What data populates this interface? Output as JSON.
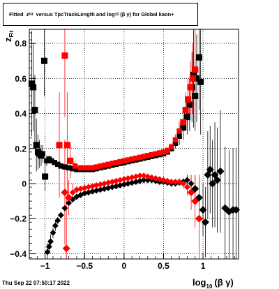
{
  "title": {
    "prefix": "Fitted",
    "var": "z",
    "var_sub": "Fit",
    "mid": "versus TpcTrackLength and log",
    "log_sub": "10",
    "suffix": "(β γ) for Global kaon+"
  },
  "timestamp": "Thu Sep 22 07:50:17 2022",
  "colors": {
    "series_a": "#000000",
    "series_b": "#ff0000",
    "grid": "#000000"
  },
  "chart_data": {
    "type": "scatter",
    "xlabel": {
      "main": "log",
      "sub": "10",
      "tail": "(β γ)"
    },
    "ylabel": {
      "main": "z",
      "sub": "Fit"
    },
    "xlim": [
      -1.2,
      1.45
    ],
    "ylim": [
      -0.43,
      0.88
    ],
    "x_ticks": [
      {
        "v": -1,
        "label": "−1"
      },
      {
        "v": -0.5,
        "label": "−0.5"
      },
      {
        "v": 0,
        "label": "0"
      },
      {
        "v": 0.5,
        "label": "0.5"
      },
      {
        "v": 1,
        "label": "1"
      }
    ],
    "y_ticks": [
      {
        "v": -0.4,
        "label": "−0.4"
      },
      {
        "v": -0.2,
        "label": "−0.2"
      },
      {
        "v": 0,
        "label": "0"
      },
      {
        "v": 0.2,
        "label": "0.2"
      },
      {
        "v": 0.4,
        "label": "0.4"
      },
      {
        "v": 0.6,
        "label": "0.6"
      },
      {
        "v": 0.8,
        "label": "0.8"
      }
    ],
    "grid": true,
    "series": [
      {
        "marker": "square",
        "color": "#000000",
        "points": [
          [
            -1.17,
            0.57,
            0.3
          ],
          [
            -1.15,
            0.55,
            0.25
          ],
          [
            -1.13,
            0.42,
            0.2
          ],
          [
            -1.11,
            0.22,
            0.15
          ],
          [
            -1.09,
            0.18,
            0.1
          ],
          [
            -1.07,
            0.17,
            0.08
          ],
          [
            -1.05,
            0.16,
            0.06
          ],
          [
            -1.03,
            0.17,
            0.05
          ],
          [
            -1.01,
            0.7,
            0.2
          ],
          [
            -1.0,
            0.04,
            0.08
          ],
          [
            -0.98,
            0.13,
            0.03
          ],
          [
            -0.95,
            0.14,
            0.02
          ],
          [
            -0.92,
            0.13,
            0.015
          ],
          [
            -0.88,
            0.12,
            0.01
          ],
          [
            -0.84,
            0.11,
            0.01
          ],
          [
            -0.8,
            0.1,
            0.01
          ],
          [
            -0.75,
            0.095,
            0.01
          ],
          [
            -0.7,
            0.09,
            0.01
          ],
          [
            -0.65,
            0.085,
            0.01
          ],
          [
            -0.6,
            0.08,
            0.01
          ],
          [
            -0.55,
            0.08,
            0.01
          ],
          [
            -0.5,
            0.08,
            0.01
          ],
          [
            -0.45,
            0.08,
            0.01
          ],
          [
            -0.4,
            0.08,
            0.01
          ],
          [
            -0.35,
            0.085,
            0.01
          ],
          [
            -0.3,
            0.09,
            0.01
          ],
          [
            -0.25,
            0.095,
            0.01
          ],
          [
            -0.2,
            0.1,
            0.01
          ],
          [
            -0.15,
            0.105,
            0.01
          ],
          [
            -0.1,
            0.11,
            0.01
          ],
          [
            -0.05,
            0.115,
            0.01
          ],
          [
            0.0,
            0.12,
            0.01
          ],
          [
            0.05,
            0.125,
            0.01
          ],
          [
            0.1,
            0.13,
            0.01
          ],
          [
            0.15,
            0.135,
            0.01
          ],
          [
            0.2,
            0.14,
            0.01
          ],
          [
            0.25,
            0.145,
            0.01
          ],
          [
            0.3,
            0.15,
            0.01
          ],
          [
            0.35,
            0.155,
            0.01
          ],
          [
            0.4,
            0.16,
            0.01
          ],
          [
            0.45,
            0.165,
            0.01
          ],
          [
            0.5,
            0.17,
            0.01
          ],
          [
            0.55,
            0.18,
            0.015
          ],
          [
            0.6,
            0.2,
            0.02
          ],
          [
            0.65,
            0.23,
            0.03
          ],
          [
            0.7,
            0.27,
            0.05
          ],
          [
            0.75,
            0.32,
            0.07
          ],
          [
            0.8,
            0.38,
            0.1
          ],
          [
            0.83,
            0.45,
            0.15
          ],
          [
            0.86,
            0.55,
            0.2
          ],
          [
            0.88,
            0.62,
            0.3
          ],
          [
            0.9,
            0.5,
            0.2
          ],
          [
            0.92,
            0.6,
            0.25
          ],
          [
            0.95,
            0.72,
            0.3
          ],
          [
            0.97,
            0.58,
            0.3
          ]
        ]
      },
      {
        "marker": "square",
        "color": "#ff0000",
        "points": [
          [
            -0.82,
            0.22,
            0.3
          ],
          [
            -0.75,
            0.73,
            0.35
          ],
          [
            -0.72,
            0.22,
            0.3
          ],
          [
            -0.68,
            0.13,
            0.1
          ],
          [
            -0.62,
            0.1,
            0.03
          ],
          [
            -0.55,
            0.09,
            0.015
          ],
          [
            -0.5,
            0.09,
            0.01
          ],
          [
            -0.45,
            0.09,
            0.01
          ],
          [
            -0.4,
            0.09,
            0.01
          ],
          [
            -0.35,
            0.095,
            0.01
          ],
          [
            -0.3,
            0.1,
            0.01
          ],
          [
            -0.25,
            0.105,
            0.01
          ],
          [
            -0.2,
            0.11,
            0.01
          ],
          [
            -0.15,
            0.115,
            0.01
          ],
          [
            -0.1,
            0.12,
            0.01
          ],
          [
            -0.05,
            0.125,
            0.01
          ],
          [
            0.0,
            0.13,
            0.01
          ],
          [
            0.05,
            0.135,
            0.01
          ],
          [
            0.1,
            0.14,
            0.01
          ],
          [
            0.15,
            0.145,
            0.01
          ],
          [
            0.2,
            0.15,
            0.01
          ],
          [
            0.25,
            0.155,
            0.01
          ],
          [
            0.3,
            0.16,
            0.01
          ],
          [
            0.35,
            0.165,
            0.01
          ],
          [
            0.4,
            0.17,
            0.01
          ],
          [
            0.45,
            0.175,
            0.01
          ],
          [
            0.5,
            0.18,
            0.01
          ],
          [
            0.55,
            0.19,
            0.015
          ],
          [
            0.6,
            0.21,
            0.02
          ],
          [
            0.65,
            0.25,
            0.03
          ],
          [
            0.7,
            0.3,
            0.05
          ],
          [
            0.75,
            0.35,
            0.08
          ],
          [
            0.78,
            0.42,
            0.1
          ],
          [
            0.81,
            0.48,
            0.12
          ],
          [
            0.84,
            0.55,
            0.15
          ],
          [
            0.87,
            0.6,
            0.2
          ],
          [
            0.9,
            0.65,
            0.25
          ]
        ]
      },
      {
        "marker": "diamond",
        "color": "#000000",
        "points": [
          [
            -0.97,
            -0.39,
            0.05
          ],
          [
            -0.95,
            -0.36,
            0.04
          ],
          [
            -0.93,
            -0.33,
            0.04
          ],
          [
            -0.9,
            -0.28,
            0.03
          ],
          [
            -0.87,
            -0.24,
            0.03
          ],
          [
            -0.84,
            -0.21,
            0.02
          ],
          [
            -0.8,
            -0.18,
            0.02
          ],
          [
            -0.75,
            -0.14,
            0.015
          ],
          [
            -0.7,
            -0.11,
            0.01
          ],
          [
            -0.65,
            -0.09,
            0.01
          ],
          [
            -0.6,
            -0.075,
            0.01
          ],
          [
            -0.55,
            -0.065,
            0.01
          ],
          [
            -0.5,
            -0.055,
            0.01
          ],
          [
            -0.45,
            -0.05,
            0.01
          ],
          [
            -0.4,
            -0.045,
            0.01
          ],
          [
            -0.35,
            -0.04,
            0.01
          ],
          [
            -0.3,
            -0.035,
            0.01
          ],
          [
            -0.25,
            -0.03,
            0.01
          ],
          [
            -0.2,
            -0.025,
            0.01
          ],
          [
            -0.15,
            -0.02,
            0.01
          ],
          [
            -0.1,
            -0.015,
            0.01
          ],
          [
            -0.05,
            -0.01,
            0.01
          ],
          [
            0.0,
            -0.005,
            0.01
          ],
          [
            0.05,
            0.0,
            0.01
          ],
          [
            0.1,
            0.005,
            0.01
          ],
          [
            0.15,
            0.01,
            0.01
          ],
          [
            0.2,
            0.015,
            0.01
          ],
          [
            0.25,
            0.02,
            0.01
          ],
          [
            0.3,
            0.02,
            0.01
          ],
          [
            0.35,
            0.02,
            0.01
          ],
          [
            0.4,
            0.015,
            0.01
          ],
          [
            0.45,
            0.01,
            0.01
          ],
          [
            0.5,
            0.01,
            0.01
          ],
          [
            0.55,
            0.005,
            0.01
          ],
          [
            0.6,
            0.0,
            0.01
          ],
          [
            0.65,
            0.0,
            0.01
          ],
          [
            0.7,
            0.005,
            0.015
          ],
          [
            0.75,
            0.01,
            0.02
          ],
          [
            0.8,
            0.02,
            0.03
          ],
          [
            0.85,
            0.0,
            0.05
          ],
          [
            0.9,
            -0.03,
            0.08
          ],
          [
            0.95,
            -0.08,
            0.1
          ],
          [
            1.0,
            -0.15,
            0.15
          ],
          [
            1.03,
            -0.22,
            0.2
          ],
          [
            1.06,
            0.05,
            0.25
          ],
          [
            1.09,
            0.08,
            0.25
          ],
          [
            1.12,
            0.0,
            0.25
          ],
          [
            1.15,
            0.05,
            0.3
          ],
          [
            1.18,
            0.02,
            0.3
          ],
          [
            1.22,
            0.07,
            0.35
          ],
          [
            1.28,
            -0.14,
            0.35
          ],
          [
            1.33,
            -0.16,
            0.35
          ],
          [
            1.38,
            -0.15,
            0.35
          ],
          [
            1.42,
            -0.15,
            0.35
          ]
        ]
      },
      {
        "marker": "diamond",
        "color": "#ff0000",
        "points": [
          [
            -0.75,
            -0.05,
            0.3
          ],
          [
            -0.73,
            -0.37,
            0.3
          ],
          [
            -0.7,
            -0.08,
            0.1
          ],
          [
            -0.65,
            -0.05,
            0.05
          ],
          [
            -0.6,
            -0.035,
            0.02
          ],
          [
            -0.55,
            -0.03,
            0.015
          ],
          [
            -0.5,
            -0.025,
            0.01
          ],
          [
            -0.45,
            -0.02,
            0.01
          ],
          [
            -0.4,
            -0.015,
            0.01
          ],
          [
            -0.35,
            -0.01,
            0.01
          ],
          [
            -0.3,
            -0.005,
            0.01
          ],
          [
            -0.25,
            0.0,
            0.01
          ],
          [
            -0.2,
            0.005,
            0.01
          ],
          [
            -0.15,
            0.01,
            0.01
          ],
          [
            -0.1,
            0.015,
            0.01
          ],
          [
            -0.05,
            0.02,
            0.01
          ],
          [
            0.0,
            0.025,
            0.01
          ],
          [
            0.05,
            0.03,
            0.01
          ],
          [
            0.1,
            0.035,
            0.01
          ],
          [
            0.15,
            0.04,
            0.01
          ],
          [
            0.2,
            0.045,
            0.01
          ],
          [
            0.25,
            0.045,
            0.01
          ],
          [
            0.3,
            0.04,
            0.01
          ],
          [
            0.35,
            0.035,
            0.01
          ],
          [
            0.4,
            0.03,
            0.01
          ],
          [
            0.45,
            0.025,
            0.01
          ],
          [
            0.5,
            0.02,
            0.01
          ],
          [
            0.55,
            0.015,
            0.01
          ],
          [
            0.6,
            0.01,
            0.01
          ],
          [
            0.65,
            0.01,
            0.015
          ],
          [
            0.7,
            0.01,
            0.02
          ],
          [
            0.75,
            0.0,
            0.03
          ],
          [
            0.8,
            -0.02,
            0.05
          ],
          [
            0.85,
            -0.05,
            0.1
          ],
          [
            0.9,
            -0.1,
            0.15
          ],
          [
            0.95,
            -0.2,
            0.25
          ]
        ]
      }
    ]
  }
}
